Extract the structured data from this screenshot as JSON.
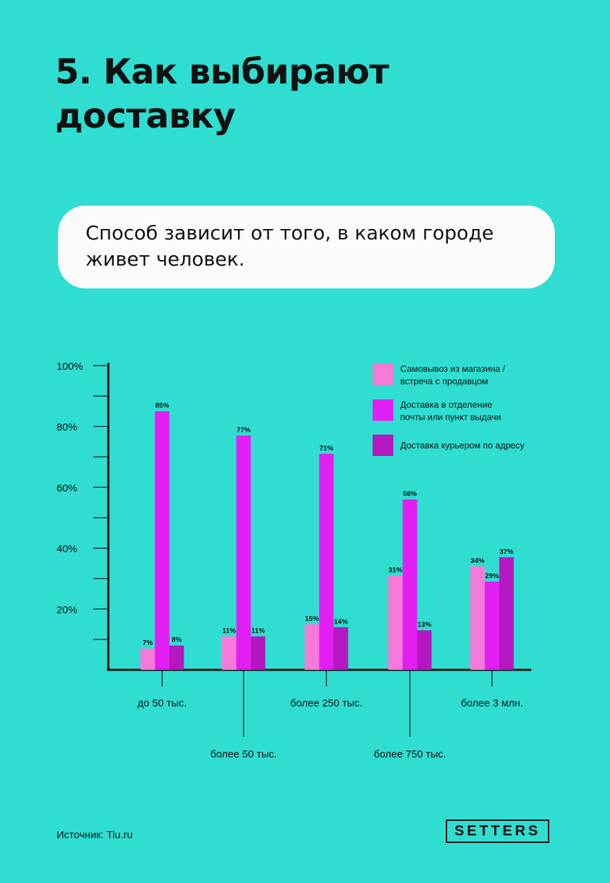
{
  "page": {
    "title": "5. Как выбирают доставку",
    "callout": "Способ зависит от того, в каком городе живет человек.",
    "source": "Источник: Tiu.ru",
    "brand": "SETTERS"
  },
  "chart_data": {
    "type": "bar",
    "categories": [
      "до 50 тыс.",
      "более 50 тыс.",
      "более 250 тыс.",
      "более 750 тыс.",
      "более 3 млн."
    ],
    "series": [
      {
        "name": "Самовывоз из магазина / встреча с продавцом",
        "color": "#f77ad9",
        "values": [
          7,
          11,
          15,
          31,
          34
        ],
        "labels": [
          "7%",
          "11%",
          "15%",
          "31%",
          "34%"
        ]
      },
      {
        "name": "Доставка в отделение почты или пункт выдачи",
        "color": "#e21ff2",
        "values": [
          85,
          77,
          71,
          56,
          29
        ],
        "labels": [
          "85%",
          "77%",
          "71%",
          "56%",
          "29%"
        ]
      },
      {
        "name": "Доставка курьером по адресу",
        "color": "#b517c0",
        "values": [
          8,
          11,
          14,
          13,
          37
        ],
        "labels": [
          "8%",
          "11%",
          "14%",
          "13%",
          "37%"
        ]
      }
    ],
    "legend": {
      "position": "top-right",
      "items": [
        [
          "Самовывоз из магазина /",
          "встреча с продавцом"
        ],
        [
          "Доставка в отделение",
          "почты или пункт выдачи"
        ],
        [
          "Доставка курьером по адресу"
        ]
      ]
    },
    "ylim": [
      0,
      100
    ],
    "yticks": [
      20,
      40,
      60,
      80,
      100
    ],
    "ytick_labels": [
      "20%",
      "40%",
      "60%",
      "80%",
      "100%"
    ],
    "category_label_rows": [
      "top",
      "bottom",
      "top",
      "bottom",
      "top"
    ],
    "xlabel": "",
    "ylabel": ""
  }
}
